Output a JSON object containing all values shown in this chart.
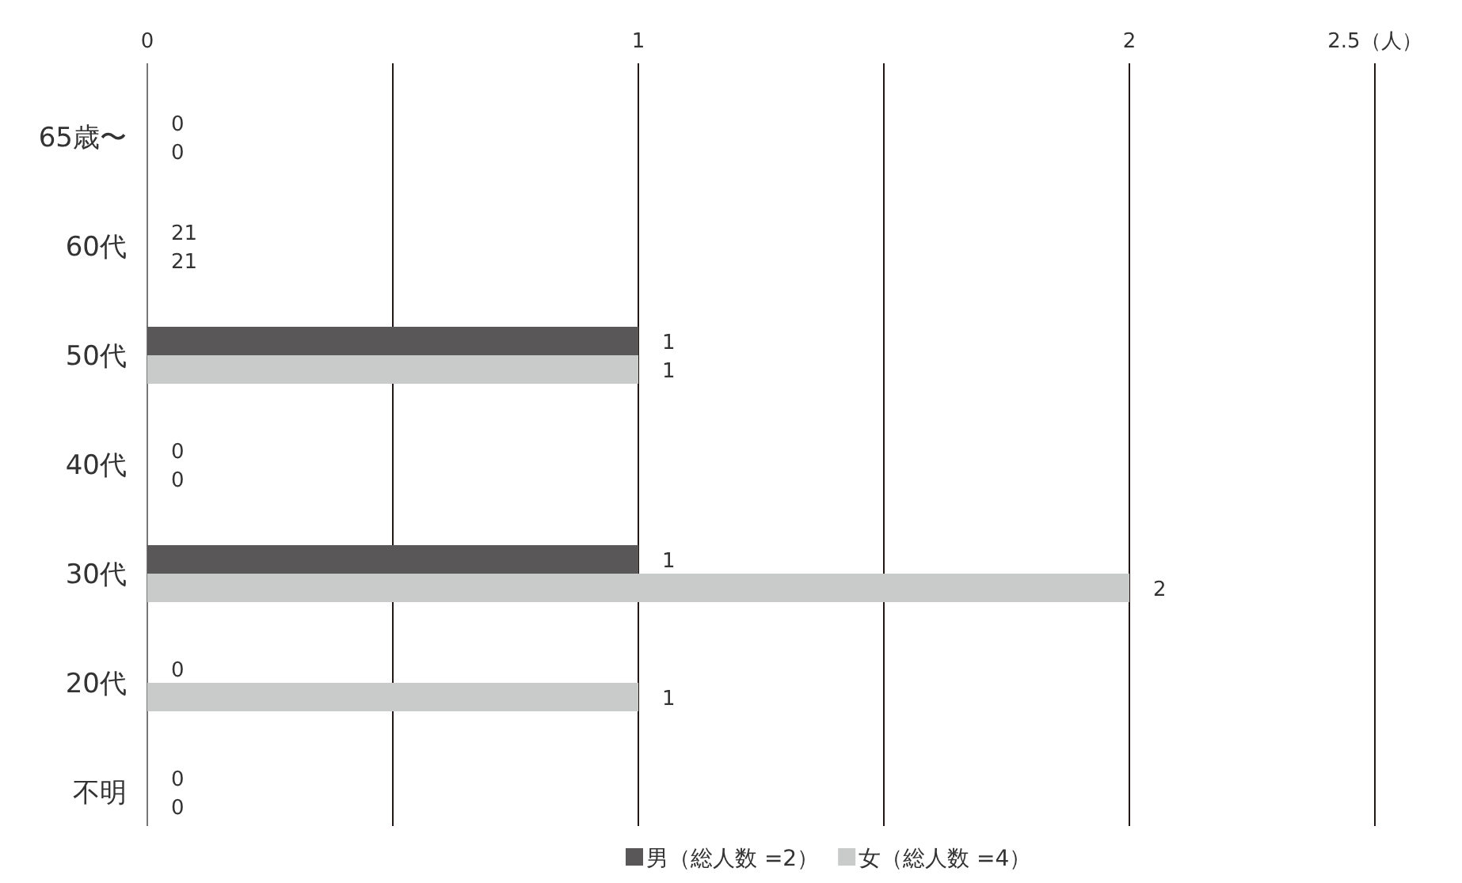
{
  "chart_data": {
    "type": "bar",
    "orientation": "horizontal",
    "categories": [
      "65歳〜",
      "60代",
      "50代",
      "40代",
      "30代",
      "20代",
      "不明"
    ],
    "series": [
      {
        "name": "男（総人数 =2）",
        "color": "#595757",
        "values": [
          0,
          null,
          1,
          0,
          1,
          0,
          0
        ],
        "value_labels": [
          "0",
          "21",
          "1",
          "0",
          "1",
          "0",
          "0"
        ]
      },
      {
        "name": "女（総人数 =4）",
        "color": "#c9caca",
        "values": [
          0,
          null,
          1,
          0,
          2,
          1,
          0
        ],
        "value_labels": [
          "0",
          "21",
          "1",
          "0",
          "2",
          "1",
          "0"
        ]
      }
    ],
    "xlim": [
      0,
      2.5
    ],
    "xticks": [
      0,
      {
        "value": 0.5,
        "label": null
      },
      1,
      {
        "value": 1.5,
        "label": null
      },
      2,
      {
        "value": 2.5,
        "label": "2.5（人）"
      }
    ],
    "grid": "x",
    "legend": "bottom"
  }
}
